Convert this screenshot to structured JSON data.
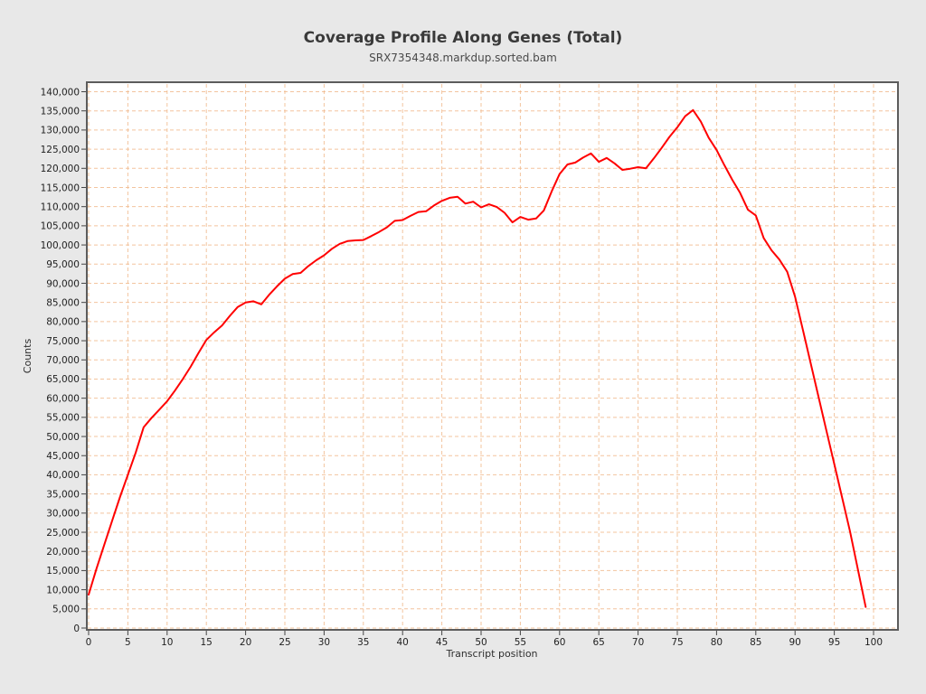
{
  "header": {
    "title": "Coverage Profile Along Genes (Total)",
    "subtitle": "SRX7354348.markdup.sorted.bam"
  },
  "chart_data": {
    "type": "line",
    "title": "Coverage Profile Along Genes (Total)",
    "subtitle": "SRX7354348.markdup.sorted.bam",
    "xlabel": "Transcript position",
    "ylabel": "Counts",
    "legend": "none",
    "grid": true,
    "colors": {
      "line": "#ff0000",
      "grid": "#f1ba8e",
      "panel_background": "#ffffff",
      "figure_background": "#e8e8e8",
      "panel_border": "#5c5c5c",
      "tick": "#444444"
    },
    "xlim": [
      -0.25,
      103.1
    ],
    "ylim": [
      -500,
      142500
    ],
    "x_ticks": [
      0,
      5,
      10,
      15,
      20,
      25,
      30,
      35,
      40,
      45,
      50,
      55,
      60,
      65,
      70,
      75,
      80,
      85,
      90,
      95,
      100
    ],
    "x_tick_labels": [
      "0",
      "5",
      "10",
      "15",
      "20",
      "25",
      "30",
      "35",
      "40",
      "45",
      "50",
      "55",
      "60",
      "65",
      "70",
      "75",
      "80",
      "85",
      "90",
      "95",
      "100"
    ],
    "y_ticks": [
      0,
      5000,
      10000,
      15000,
      20000,
      25000,
      30000,
      35000,
      40000,
      45000,
      50000,
      55000,
      60000,
      65000,
      70000,
      75000,
      80000,
      85000,
      90000,
      95000,
      100000,
      105000,
      110000,
      115000,
      120000,
      125000,
      130000,
      135000,
      140000
    ],
    "y_tick_labels": [
      "0",
      "5,000",
      "10,000",
      "15,000",
      "20,000",
      "25,000",
      "30,000",
      "35,000",
      "40,000",
      "45,000",
      "50,000",
      "55,000",
      "60,000",
      "65,000",
      "70,000",
      "75,000",
      "80,000",
      "85,000",
      "90,000",
      "95,000",
      "100,000",
      "105,000",
      "110,000",
      "115,000",
      "120,000",
      "125,000",
      "130,000",
      "135,000",
      "140,000"
    ],
    "series": [
      {
        "name": "Coverage",
        "x": [
          0,
          1,
          2,
          3,
          4,
          5,
          6,
          7,
          8,
          9,
          10,
          11,
          12,
          13,
          14,
          15,
          16,
          17,
          18,
          19,
          20,
          21,
          22,
          23,
          24,
          25,
          26,
          27,
          28,
          29,
          30,
          31,
          32,
          33,
          34,
          35,
          36,
          37,
          38,
          39,
          40,
          41,
          42,
          43,
          44,
          45,
          46,
          47,
          48,
          49,
          50,
          51,
          52,
          53,
          54,
          55,
          56,
          57,
          58,
          59,
          60,
          61,
          62,
          63,
          64,
          65,
          66,
          67,
          68,
          69,
          70,
          71,
          72,
          73,
          74,
          75,
          76,
          77,
          78,
          79,
          80,
          81,
          82,
          83,
          84,
          85,
          86,
          87,
          88,
          89,
          90,
          91,
          92,
          93,
          94,
          95,
          96,
          97,
          98,
          99
        ],
        "values": [
          8700,
          15500,
          21800,
          28000,
          34200,
          40000,
          45800,
          52400,
          54800,
          57000,
          59200,
          62000,
          65000,
          68200,
          71800,
          75200,
          77200,
          79000,
          81500,
          83800,
          85000,
          85300,
          84500,
          87000,
          89200,
          91200,
          92400,
          92700,
          94500,
          96000,
          97300,
          99000,
          100300,
          101000,
          101200,
          101300,
          102300,
          103400,
          104600,
          106300,
          106500,
          107600,
          108600,
          108800,
          110300,
          111500,
          112300,
          112600,
          110800,
          111300,
          109800,
          110600,
          109900,
          108400,
          105900,
          107300,
          106600,
          106900,
          109000,
          114000,
          118500,
          121000,
          121500,
          122800,
          123900,
          121700,
          122700,
          121300,
          119600,
          119900,
          120300,
          120000,
          122600,
          125300,
          128200,
          130700,
          133600,
          135200,
          132200,
          128000,
          124800,
          120800,
          117000,
          113600,
          109200,
          107700,
          101800,
          98600,
          96200,
          93000,
          86500,
          77800,
          69000,
          60300,
          51500,
          42800,
          34000,
          25200,
          15400,
          5500
        ]
      }
    ]
  }
}
